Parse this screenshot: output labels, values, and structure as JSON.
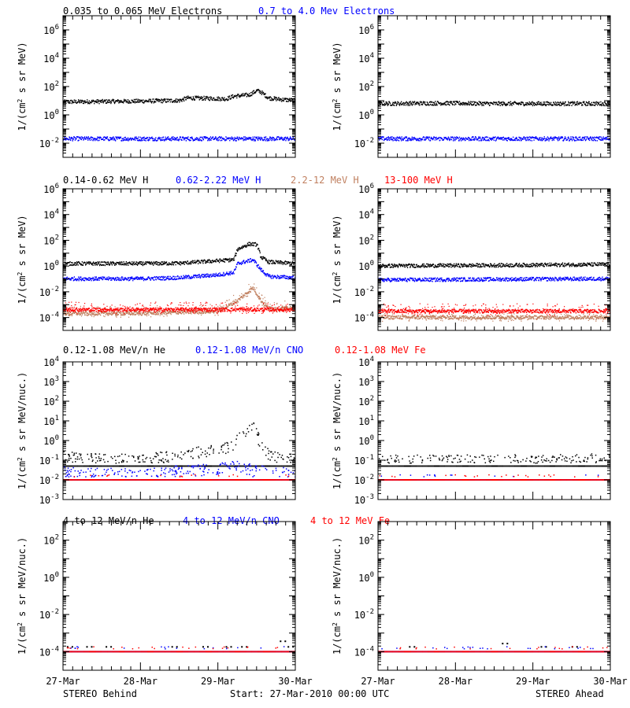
{
  "footer": {
    "left": "STEREO Behind",
    "center": "Start: 27-Mar-2010 00:00 UTC",
    "right": "STEREO Ahead"
  },
  "x_tick_labels": [
    "27-Mar",
    "28-Mar",
    "29-Mar",
    "30-Mar"
  ],
  "colors": {
    "black": "#000000",
    "blue": "#0000ff",
    "tan": "#c08060",
    "red": "#ff0000"
  },
  "chart_data": [
    {
      "type": "scatter",
      "row": 1,
      "series_labels": [
        "0.035 to 0.065 MeV Electrons",
        "0.7 to 4.0 Mev Electrons"
      ],
      "series_colors": [
        "#000000",
        "#0000ff"
      ],
      "ylabel_html": "1/(cm<tspan baseline-shift=\"super\" font-size=\"8\">2</tspan> s sr MeV)",
      "ylabel": "1/(cm2 s sr MeV)",
      "ylog": true,
      "ylim_exp": [
        -3,
        7
      ],
      "ytick_exponents": [
        -2,
        0,
        2,
        4,
        6
      ],
      "x_days": [
        0,
        3
      ],
      "panels": [
        {
          "name": "STEREO Behind",
          "series": [
            {
              "name": "0.035 to 0.065 MeV Electrons",
              "color": "#000000",
              "style": "band",
              "points": [
                [
                  0,
                  8
                ],
                [
                  0.5,
                  8.5
                ],
                [
                  1.0,
                  9
                ],
                [
                  1.5,
                  10
                ],
                [
                  1.6,
                  15
                ],
                [
                  1.9,
                  14
                ],
                [
                  2.1,
                  13
                ],
                [
                  2.2,
                  20
                ],
                [
                  2.4,
                  25
                ],
                [
                  2.5,
                  50
                ],
                [
                  2.55,
                  40
                ],
                [
                  2.65,
                  15
                ],
                [
                  2.8,
                  12
                ],
                [
                  3.0,
                  10
                ]
              ]
            },
            {
              "name": "0.7 to 4.0 Mev Electrons",
              "color": "#0000ff",
              "style": "band",
              "points": [
                [
                  0,
                  0.02
                ],
                [
                  1.5,
                  0.02
                ],
                [
                  3.0,
                  0.02
                ]
              ]
            }
          ]
        },
        {
          "name": "STEREO Ahead",
          "series": [
            {
              "name": "0.035 to 0.065 MeV Electrons",
              "color": "#000000",
              "style": "band",
              "points": [
                [
                  0,
                  6
                ],
                [
                  0.8,
                  6.5
                ],
                [
                  1.5,
                  6
                ],
                [
                  2.2,
                  6
                ],
                [
                  3.0,
                  6
                ]
              ]
            },
            {
              "name": "0.7 to 4.0 Mev Electrons",
              "color": "#0000ff",
              "style": "band",
              "points": [
                [
                  0,
                  0.02
                ],
                [
                  1.5,
                  0.02
                ],
                [
                  3.0,
                  0.02
                ]
              ]
            }
          ]
        }
      ]
    },
    {
      "type": "scatter",
      "row": 2,
      "series_labels": [
        "0.14-0.62 MeV H",
        "0.62-2.22 MeV H",
        "2.2-12 MeV H",
        "13-100 MeV H"
      ],
      "series_colors": [
        "#000000",
        "#0000ff",
        "#c08060",
        "#ff0000"
      ],
      "ylabel_html": "1/(cm<tspan baseline-shift=\"super\" font-size=\"8\">2</tspan> s sr MeV)",
      "ylabel": "1/(cm2 s sr MeV)",
      "ylog": true,
      "ylim_exp": [
        -5,
        6
      ],
      "ytick_exponents": [
        -4,
        -2,
        0,
        2,
        4,
        6
      ],
      "x_days": [
        0,
        3
      ],
      "panels": [
        {
          "name": "STEREO Behind",
          "series": [
            {
              "name": "0.14-0.62 MeV H",
              "color": "#000000",
              "style": "band",
              "points": [
                [
                  0,
                  1.5
                ],
                [
                  1.0,
                  1.5
                ],
                [
                  1.5,
                  1.6
                ],
                [
                  2.0,
                  2.5
                ],
                [
                  2.2,
                  3
                ],
                [
                  2.25,
                  20
                ],
                [
                  2.4,
                  50
                ],
                [
                  2.5,
                  45
                ],
                [
                  2.55,
                  5
                ],
                [
                  2.65,
                  2
                ],
                [
                  3.0,
                  1.5
                ]
              ]
            },
            {
              "name": "0.62-2.22 MeV H",
              "color": "#0000ff",
              "style": "band",
              "points": [
                [
                  0,
                  0.1
                ],
                [
                  1.0,
                  0.1
                ],
                [
                  1.5,
                  0.12
                ],
                [
                  2.0,
                  0.2
                ],
                [
                  2.2,
                  0.3
                ],
                [
                  2.25,
                  1.5
                ],
                [
                  2.45,
                  3
                ],
                [
                  2.55,
                  0.5
                ],
                [
                  2.65,
                  0.15
                ],
                [
                  3.0,
                  0.12
                ]
              ]
            },
            {
              "name": "2.2-12 MeV H",
              "color": "#c08060",
              "style": "band",
              "points": [
                [
                  0,
                  0.0002
                ],
                [
                  1.0,
                  0.0002
                ],
                [
                  2.0,
                  0.0003
                ],
                [
                  2.25,
                  0.002
                ],
                [
                  2.45,
                  0.02
                ],
                [
                  2.55,
                  0.002
                ],
                [
                  2.65,
                  0.0005
                ],
                [
                  3.0,
                  0.0005
                ]
              ]
            },
            {
              "name": "13-100 MeV H",
              "color": "#ff0000",
              "style": "band",
              "points": [
                [
                  0,
                  0.0004
                ],
                [
                  1.5,
                  0.0004
                ],
                [
                  3.0,
                  0.0004
                ]
              ]
            }
          ]
        },
        {
          "name": "STEREO Ahead",
          "series": [
            {
              "name": "0.14-0.62 MeV H",
              "color": "#000000",
              "style": "band",
              "points": [
                [
                  0,
                  1.0
                ],
                [
                  1.5,
                  1.1
                ],
                [
                  3.0,
                  1.3
                ]
              ]
            },
            {
              "name": "0.62-2.22 MeV H",
              "color": "#0000ff",
              "style": "band",
              "points": [
                [
                  0,
                  0.08
                ],
                [
                  1.5,
                  0.09
                ],
                [
                  3.0,
                  0.1
                ]
              ]
            },
            {
              "name": "2.2-12 MeV H",
              "color": "#c08060",
              "style": "band",
              "points": [
                [
                  0,
                  0.0001
                ],
                [
                  3.0,
                  0.0001
                ]
              ]
            },
            {
              "name": "13-100 MeV H",
              "color": "#ff0000",
              "style": "band",
              "points": [
                [
                  0,
                  0.0003
                ],
                [
                  1.5,
                  0.0003
                ],
                [
                  3.0,
                  0.0003
                ]
              ]
            }
          ]
        }
      ]
    },
    {
      "type": "scatter",
      "row": 3,
      "series_labels": [
        "0.12-1.08 MeV/n He",
        "0.12-1.08 MeV/n CNO",
        "0.12-1.08 MeV Fe"
      ],
      "series_colors": [
        "#000000",
        "#0000ff",
        "#ff0000"
      ],
      "ylabel_html": "1/(cm<tspan baseline-shift=\"super\" font-size=\"8\">2</tspan> s sr MeV/nuc.)",
      "ylabel": "1/(cm2 s sr MeV/nuc.)",
      "ylog": true,
      "ylim_exp": [
        -3,
        4
      ],
      "ytick_exponents": [
        -3,
        -2,
        -1,
        0,
        1,
        2,
        3,
        4
      ],
      "x_days": [
        0,
        3
      ],
      "panels": [
        {
          "name": "STEREO Behind",
          "series": [
            {
              "name": "0.12-1.08 MeV/n He",
              "color": "#000000",
              "style": "floor",
              "floor": 0.05,
              "points": [
                [
                  0,
                  0.15
                ],
                [
                  0.5,
                  0.12
                ],
                [
                  1.0,
                  0.1
                ],
                [
                  1.5,
                  0.2
                ],
                [
                  1.8,
                  0.3
                ],
                [
                  2.0,
                  0.4
                ],
                [
                  2.2,
                  0.5
                ],
                [
                  2.3,
                  8
                ],
                [
                  2.35,
                  2
                ],
                [
                  2.45,
                  10
                ],
                [
                  2.55,
                  0.5
                ],
                [
                  2.7,
                  0.15
                ],
                [
                  3.0,
                  0.1
                ]
              ]
            },
            {
              "name": "0.12-1.08 MeV/n CNO",
              "color": "#0000ff",
              "style": "floor",
              "floor": 0.01,
              "points": [
                [
                  0,
                  0.025
                ],
                [
                  1.0,
                  0.02
                ],
                [
                  2.3,
                  0.05
                ],
                [
                  2.45,
                  0.03
                ],
                [
                  3.0,
                  0.02
                ]
              ]
            },
            {
              "name": "0.12-1.08 MeV Fe",
              "color": "#ff0000",
              "style": "floor",
              "floor": 0.01,
              "points": [
                [
                  0,
                  0.01
                ],
                [
                  3.0,
                  0.01
                ]
              ]
            }
          ]
        },
        {
          "name": "STEREO Ahead",
          "series": [
            {
              "name": "0.12-1.08 MeV/n He",
              "color": "#000000",
              "style": "floor",
              "floor": 0.05,
              "points": [
                [
                  0,
                  0.1
                ],
                [
                  1.5,
                  0.1
                ],
                [
                  3.0,
                  0.12
                ]
              ]
            },
            {
              "name": "0.12-1.08 MeV/n CNO",
              "color": "#0000ff",
              "style": "floor",
              "floor": 0.01,
              "points": [
                [
                  0,
                  0.01
                ],
                [
                  3.0,
                  0.01
                ]
              ]
            },
            {
              "name": "0.12-1.08 MeV Fe",
              "color": "#ff0000",
              "style": "floor",
              "floor": 0.01,
              "points": [
                [
                  0,
                  0.01
                ],
                [
                  3.0,
                  0.01
                ]
              ]
            }
          ]
        }
      ]
    },
    {
      "type": "scatter",
      "row": 4,
      "series_labels": [
        "4 to 12 MeV/n He",
        "4 to 12 MeV/n CNO",
        "4 to 12 MeV Fe"
      ],
      "series_colors": [
        "#000000",
        "#0000ff",
        "#ff0000"
      ],
      "ylabel_html": "1/(cm<tspan baseline-shift=\"super\" font-size=\"8\">2</tspan> s sr MeV/nuc.)",
      "ylabel": "1/(cm2 s sr MeV/nuc.)",
      "ylog": true,
      "ylim_exp": [
        -5,
        3
      ],
      "ytick_exponents": [
        -4,
        -2,
        0,
        2
      ],
      "x_days": [
        0,
        3
      ],
      "panels": [
        {
          "name": "STEREO Behind",
          "series": [
            {
              "name": "4 to 12 MeV/n He",
              "color": "#000000",
              "style": "sparse",
              "floor": 0.0001,
              "points": [
                [
                  0.05,
                  0.0002
                ],
                [
                  0.3,
                  0.0002
                ],
                [
                  0.55,
                  0.0002
                ],
                [
                  1.4,
                  0.0002
                ],
                [
                  1.8,
                  0.0002
                ],
                [
                  2.1,
                  0.0002
                ],
                [
                  2.3,
                  0.0002
                ],
                [
                  2.8,
                  0.0004
                ],
                [
                  2.9,
                  0.0002
                ]
              ]
            },
            {
              "name": "4 to 12 MeV/n CNO",
              "color": "#0000ff",
              "style": "floor",
              "floor": 0.0001,
              "points": [
                [
                  0,
                  0.0001
                ],
                [
                  3.0,
                  0.0001
                ]
              ]
            },
            {
              "name": "4 to 12 MeV Fe",
              "color": "#ff0000",
              "style": "floor",
              "floor": 0.0001,
              "points": [
                [
                  0,
                  0.0001
                ],
                [
                  3.0,
                  0.0001
                ]
              ]
            }
          ]
        },
        {
          "name": "STEREO Ahead",
          "series": [
            {
              "name": "4 to 12 MeV/n He",
              "color": "#000000",
              "style": "sparse",
              "floor": 0.0001,
              "points": [
                [
                  0.4,
                  0.0002
                ],
                [
                  1.6,
                  0.0003
                ],
                [
                  2.1,
                  0.0002
                ],
                [
                  2.5,
                  0.0002
                ]
              ]
            },
            {
              "name": "4 to 12 MeV/n CNO",
              "color": "#0000ff",
              "style": "floor",
              "floor": 0.0001,
              "points": [
                [
                  0,
                  0.0001
                ],
                [
                  3.0,
                  0.0001
                ]
              ]
            },
            {
              "name": "4 to 12 MeV Fe",
              "color": "#ff0000",
              "style": "floor",
              "floor": 0.0001,
              "points": [
                [
                  0,
                  0.0001
                ],
                [
                  3.0,
                  0.0001
                ]
              ]
            }
          ]
        }
      ]
    }
  ]
}
